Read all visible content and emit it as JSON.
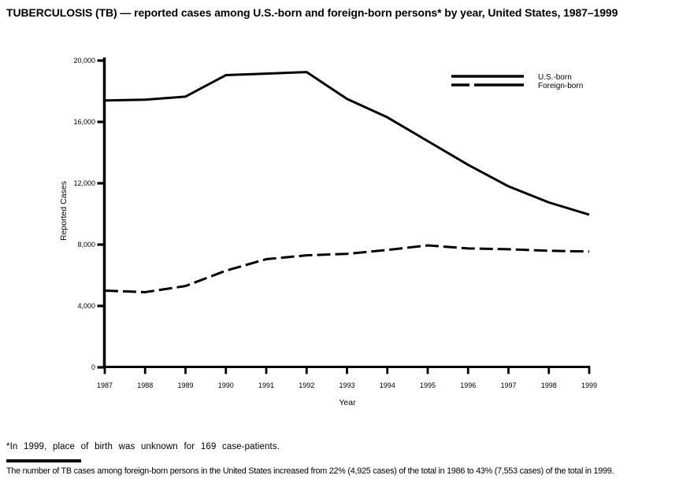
{
  "title": "TUBERCULOSIS (TB) — reported cases among U.S.-born and foreign-born persons* by year, United States, 1987–1999",
  "footnote": "*In 1999, place of birth was unknown for 169 case-patients.",
  "caption": "The number of TB cases among foreign-born persons in the United States increased from 22% (4,925 cases) of the total in 1986 to 43% (7,553 cases) of the total in 1999.",
  "colors": {
    "line": "#000000",
    "text": "#000000",
    "background": "#ffffff"
  },
  "chart_data": {
    "type": "line",
    "title": "",
    "xlabel": "Year",
    "ylabel": "Reported Cases",
    "x": [
      1987,
      1988,
      1989,
      1990,
      1991,
      1992,
      1993,
      1994,
      1995,
      1996,
      1997,
      1998,
      1999
    ],
    "series": [
      {
        "name": "U.S.-born",
        "style": "solid",
        "values": [
          17400,
          17450,
          17650,
          19050,
          19150,
          19250,
          17500,
          16300,
          14750,
          13200,
          11800,
          10750,
          9950
        ]
      },
      {
        "name": "Foreign-born",
        "style": "dashed",
        "values": [
          5000,
          4900,
          5300,
          6300,
          7050,
          7300,
          7400,
          7650,
          7950,
          7750,
          7700,
          7600,
          7550
        ]
      }
    ],
    "ylim": [
      0,
      20000
    ],
    "yticks": [
      0,
      4000,
      8000,
      12000,
      16000,
      20000
    ],
    "ytick_labels": [
      "0",
      "4,000",
      "8,000",
      "12,000",
      "16,000",
      "20,000"
    ],
    "grid": false,
    "legend_position": "top-right"
  }
}
